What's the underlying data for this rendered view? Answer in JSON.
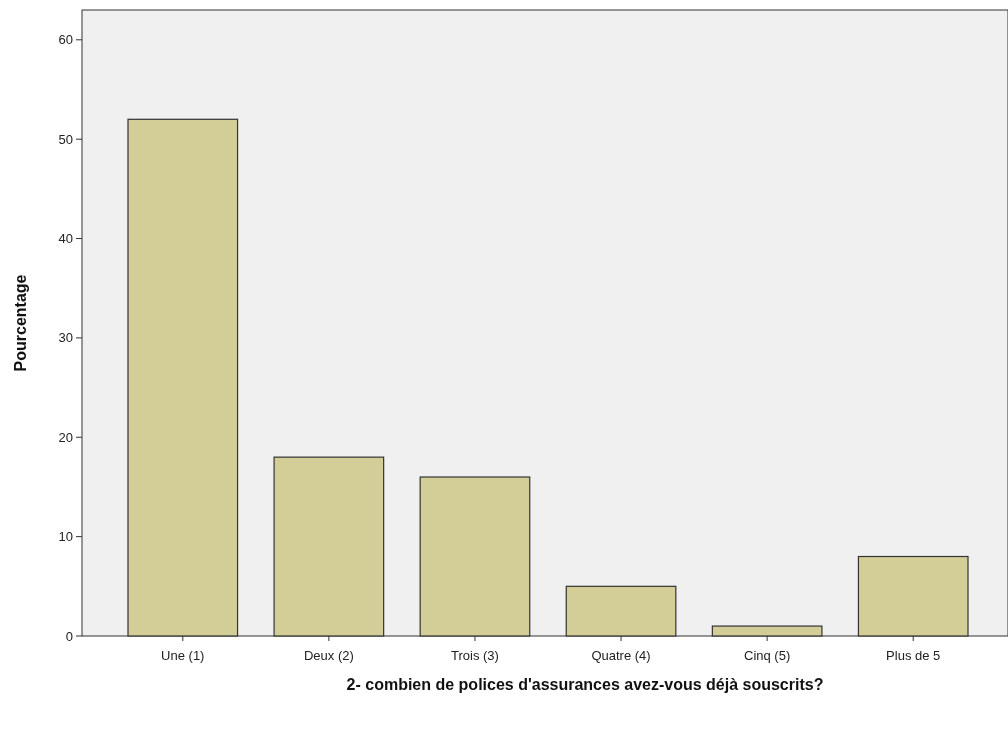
{
  "chart_data": {
    "type": "bar",
    "xlabel": "2- combien de polices d'assurances avez-vous déjà souscrits?",
    "ylabel": "Pourcentage",
    "categories": [
      "Une (1)",
      "Deux (2)",
      "Trois (3)",
      "Quatre (4)",
      "Cinq (5)",
      "Plus de 5"
    ],
    "values": [
      52,
      18,
      16,
      5,
      1,
      8
    ],
    "color": "#d3ce97",
    "ylim": [
      0,
      63
    ],
    "yticks": [
      0,
      10,
      20,
      30,
      40,
      50,
      60
    ],
    "grid": false
  }
}
